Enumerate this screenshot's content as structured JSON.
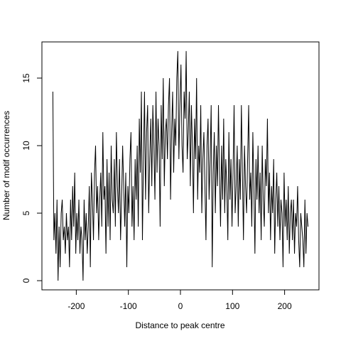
{
  "chart_data": {
    "type": "line",
    "xlabel": "Distance to peak centre",
    "ylabel": "Number of motif occurrences",
    "xlim": [
      -266,
      266
    ],
    "ylim": [
      -0.68,
      17.68
    ],
    "xticks": [
      -200,
      -100,
      0,
      100,
      200
    ],
    "yticks": [
      0,
      5,
      10,
      15
    ],
    "color": "#000000",
    "x": [
      -245,
      -243,
      -241,
      -239,
      -237,
      -235,
      -233,
      -231,
      -229,
      -227,
      -225,
      -223,
      -221,
      -219,
      -217,
      -215,
      -213,
      -211,
      -209,
      -207,
      -205,
      -203,
      -201,
      -199,
      -197,
      -195,
      -193,
      -191,
      -189,
      -187,
      -185,
      -183,
      -181,
      -179,
      -177,
      -175,
      -173,
      -171,
      -169,
      -167,
      -165,
      -163,
      -161,
      -159,
      -157,
      -155,
      -153,
      -151,
      -149,
      -147,
      -145,
      -143,
      -141,
      -139,
      -137,
      -135,
      -133,
      -131,
      -129,
      -127,
      -125,
      -123,
      -121,
      -119,
      -117,
      -115,
      -113,
      -111,
      -109,
      -107,
      -105,
      -103,
      -101,
      -99,
      -97,
      -95,
      -93,
      -91,
      -89,
      -87,
      -85,
      -83,
      -81,
      -79,
      -77,
      -75,
      -73,
      -71,
      -69,
      -67,
      -65,
      -63,
      -61,
      -59,
      -57,
      -55,
      -53,
      -51,
      -49,
      -47,
      -45,
      -43,
      -41,
      -39,
      -37,
      -35,
      -33,
      -31,
      -29,
      -27,
      -25,
      -23,
      -21,
      -19,
      -17,
      -15,
      -13,
      -11,
      -9,
      -7,
      -5,
      -3,
      -1,
      1,
      3,
      5,
      7,
      9,
      11,
      13,
      15,
      17,
      19,
      21,
      23,
      25,
      27,
      29,
      31,
      33,
      35,
      37,
      39,
      41,
      43,
      45,
      47,
      49,
      51,
      53,
      55,
      57,
      59,
      61,
      63,
      65,
      67,
      69,
      71,
      73,
      75,
      77,
      79,
      81,
      83,
      85,
      87,
      89,
      91,
      93,
      95,
      97,
      99,
      101,
      103,
      105,
      107,
      109,
      111,
      113,
      115,
      117,
      119,
      121,
      123,
      125,
      127,
      129,
      131,
      133,
      135,
      137,
      139,
      141,
      143,
      145,
      147,
      149,
      151,
      153,
      155,
      157,
      159,
      161,
      163,
      165,
      167,
      169,
      171,
      173,
      175,
      177,
      179,
      181,
      183,
      185,
      187,
      189,
      191,
      193,
      195,
      197,
      199,
      201,
      203,
      205,
      207,
      209,
      211,
      213,
      215,
      217,
      219,
      221,
      223,
      225,
      227,
      229,
      231,
      233,
      235,
      237,
      239,
      241,
      243,
      245
    ],
    "values": [
      14,
      3,
      5,
      2,
      6,
      0,
      4,
      1,
      5,
      6,
      3,
      4,
      2,
      5,
      3,
      4,
      1,
      6,
      3,
      7,
      4,
      8,
      2,
      5,
      3,
      6,
      2,
      4,
      3,
      0,
      6,
      3,
      5,
      2,
      4,
      7,
      1,
      8,
      6,
      3,
      8,
      10,
      5,
      7,
      3,
      6,
      8,
      4,
      11,
      6,
      7,
      2,
      9,
      4,
      8,
      3,
      10,
      6,
      5,
      9,
      4,
      11,
      7,
      5,
      9,
      3,
      6,
      10,
      7,
      4,
      8,
      1,
      7,
      5,
      9,
      11,
      4,
      7,
      3,
      9,
      6,
      10,
      4,
      12,
      8,
      14,
      3,
      9,
      14,
      6,
      11,
      13,
      5,
      9,
      12,
      7,
      13,
      10,
      6,
      14,
      8,
      12,
      10,
      4,
      13,
      9,
      15,
      7,
      11,
      12,
      9,
      13,
      15,
      6,
      11,
      14,
      8,
      12,
      10,
      15,
      17,
      9,
      13,
      16,
      10,
      8,
      14,
      12,
      17,
      9,
      11,
      14,
      7,
      13,
      10,
      5,
      12,
      9,
      15,
      6,
      10,
      8,
      13,
      5,
      9,
      11,
      7,
      3,
      10,
      12,
      6,
      9,
      13,
      1,
      8,
      11,
      5,
      10,
      7,
      13,
      8,
      4,
      10,
      6,
      12,
      5,
      9,
      7,
      3,
      11,
      6,
      9,
      4,
      8,
      13,
      5,
      7,
      10,
      4,
      9,
      6,
      13,
      8,
      3,
      10,
      7,
      5,
      9,
      13,
      6,
      8,
      4,
      11,
      7,
      2,
      9,
      6,
      10,
      5,
      8,
      3,
      10,
      6,
      4,
      9,
      7,
      12,
      5,
      8,
      3,
      7,
      5,
      9,
      2,
      6,
      8,
      4,
      7,
      3,
      6,
      5,
      1,
      8,
      4,
      6,
      3,
      7,
      2,
      5,
      6,
      3,
      6,
      2,
      5,
      4,
      7,
      3,
      1,
      5,
      4,
      3,
      1,
      6,
      2,
      5,
      4
    ]
  }
}
